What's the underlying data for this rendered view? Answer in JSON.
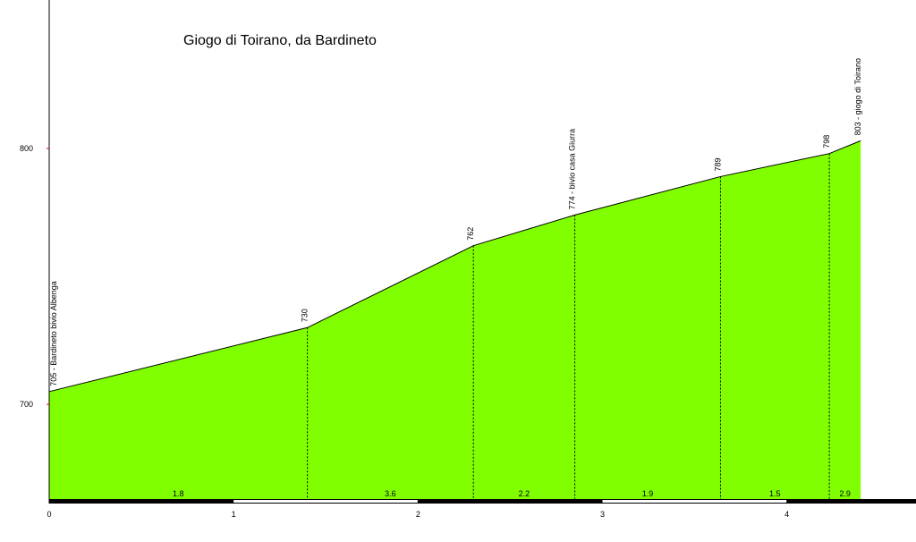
{
  "chart_data": {
    "type": "area",
    "title": "Giogo di Toirano, da Bardineto",
    "x": [
      0,
      1.4,
      2.3,
      2.85,
      3.64,
      4.23,
      4.4
    ],
    "values": [
      705,
      730,
      762,
      774,
      789,
      798,
      803
    ],
    "value_labels": [
      "705 - Bardineto bivio Albenga",
      "730",
      "762",
      "774 - bivio casa Giurra",
      "789",
      "798",
      "803 - giogo di Toirano"
    ],
    "gradients": [
      1.8,
      3.6,
      2.2,
      1.9,
      1.5,
      2.9
    ],
    "color": "#80ff00",
    "xlim": [
      0,
      4.7
    ],
    "ylim": [
      663,
      858
    ],
    "xticks": [
      0,
      1,
      2,
      3,
      4
    ],
    "yticks": [
      700,
      800
    ]
  }
}
